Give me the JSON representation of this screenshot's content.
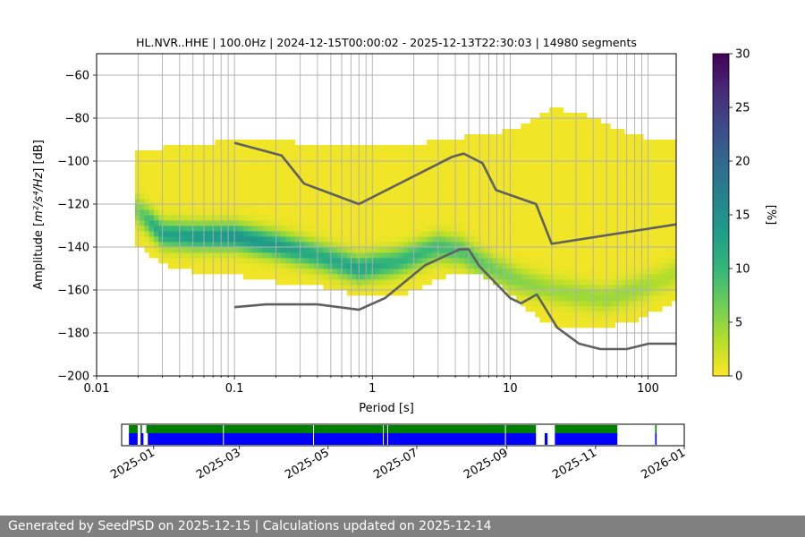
{
  "chart_data": {
    "type": "heatmap",
    "title": "HL.NVR..HHE | 100.0Hz | 2024-12-15T00:00:02 - 2025-12-13T22:30:03 | 14980 segments",
    "xlabel": "Period [s]",
    "ylabel_main": "Amplitude [",
    "ylabel_unit": "m²/s⁴/Hz",
    "ylabel_suffix": "] [dB]",
    "x_scale": "log",
    "xlim": [
      0.01,
      160
    ],
    "ylim": [
      -200,
      -50
    ],
    "x_ticks": [
      {
        "value": 0.01,
        "label": "0.01"
      },
      {
        "value": 0.1,
        "label": "0.1"
      },
      {
        "value": 1,
        "label": "1"
      },
      {
        "value": 10,
        "label": "10"
      },
      {
        "value": 100,
        "label": "100"
      }
    ],
    "y_ticks": [
      {
        "value": -60,
        "label": "−60"
      },
      {
        "value": -80,
        "label": "−80"
      },
      {
        "value": -100,
        "label": "−100"
      },
      {
        "value": -120,
        "label": "−120"
      },
      {
        "value": -140,
        "label": "−140"
      },
      {
        "value": -160,
        "label": "−160"
      },
      {
        "value": -180,
        "label": "−180"
      },
      {
        "value": -200,
        "label": "−200"
      }
    ],
    "grid": true,
    "colorbar": {
      "label": "[%]",
      "range": [
        0,
        30
      ],
      "ticks": [
        {
          "value": 0,
          "label": "0"
        },
        {
          "value": 5,
          "label": "5"
        },
        {
          "value": 10,
          "label": "10"
        },
        {
          "value": 15,
          "label": "15"
        },
        {
          "value": 20,
          "label": "20"
        },
        {
          "value": 25,
          "label": "25"
        },
        {
          "value": 30,
          "label": "30"
        }
      ],
      "colors": [
        "#fde725",
        "#b5de2b",
        "#6ece58",
        "#35b779",
        "#1f9e89",
        "#26828e",
        "#31688e",
        "#3e4989",
        "#482878",
        "#440154"
      ]
    },
    "psd_envelope": {
      "periods": [
        0.019,
        0.03,
        0.05,
        0.1,
        0.2,
        0.4,
        0.8,
        1.5,
        3,
        4.5,
        6,
        8,
        12,
        16,
        20,
        30,
        50,
        80,
        120,
        160
      ],
      "upper": [
        -97,
        -95,
        -93,
        -92,
        -92,
        -93,
        -94,
        -94,
        -92,
        -90,
        -88,
        -88,
        -85,
        -80,
        -77,
        -78,
        -84,
        -89,
        -92,
        -92
      ],
      "lower": [
        -137,
        -147,
        -150,
        -152,
        -155,
        -157,
        -161,
        -162,
        -154,
        -150,
        -152,
        -156,
        -165,
        -172,
        -175,
        -177,
        -176,
        -173,
        -168,
        -164
      ]
    },
    "psd_mode": {
      "periods": [
        0.019,
        0.025,
        0.03,
        0.05,
        0.1,
        0.2,
        0.4,
        0.8,
        1.5,
        3,
        4.5,
        6,
        8,
        12,
        20,
        30,
        50,
        80,
        120,
        160
      ],
      "values": [
        -122,
        -129,
        -134,
        -135,
        -135,
        -139,
        -144,
        -150,
        -147,
        -140,
        -142,
        -147,
        -151,
        -156,
        -160,
        -162,
        -164,
        -160,
        -156,
        -152
      ],
      "peak": [
        5,
        10,
        12,
        13,
        14,
        13,
        11,
        12,
        10,
        9,
        8,
        7,
        6,
        5,
        4,
        4,
        4,
        4,
        3,
        3
      ]
    },
    "nhnm": {
      "periods": [
        0.1,
        0.22,
        0.32,
        0.8,
        3.8,
        4.6,
        6.3,
        7.9,
        15.4,
        20,
        354.8
      ],
      "values": [
        -91.5,
        -97.4,
        -110.5,
        -120,
        -98,
        -96.5,
        -101,
        -113.5,
        -120,
        -138.5,
        -126
      ]
    },
    "nlnm": {
      "periods": [
        0.1,
        0.17,
        0.4,
        0.8,
        1.24,
        2.4,
        4.3,
        5,
        6,
        10,
        12,
        15.6,
        21.9,
        31.6,
        45,
        70,
        101,
        154,
        328
      ],
      "values": [
        -168,
        -166.7,
        -166.7,
        -169.2,
        -163.7,
        -148.6,
        -141.1,
        -141.1,
        -149,
        -163.8,
        -166.2,
        -162.1,
        -177.5,
        -185,
        -187.5,
        -187.5,
        -185,
        -185,
        -187.5
      ]
    }
  },
  "availability": {
    "tick_labels": [
      "2025-01",
      "2025-03",
      "2025-05",
      "2025-07",
      "2025-09",
      "2025-11",
      "2026-01"
    ],
    "tick_dates": [
      "2025-01-01",
      "2025-03-01",
      "2025-05-01",
      "2025-07-01",
      "2025-09-01",
      "2025-11-01",
      "2026-01-01"
    ],
    "range": [
      "2024-12-10",
      "2026-01-01"
    ],
    "data_color": "#0000ff",
    "gap_color": "#008000",
    "data_spans": [
      [
        "2024-12-15",
        "2024-12-21"
      ],
      [
        "2024-12-23",
        "2024-12-25"
      ],
      [
        "2024-12-28",
        "2025-09-21"
      ],
      [
        "2025-09-27",
        "2025-09-29"
      ],
      [
        "2025-10-04",
        "2025-11-16"
      ],
      [
        "2025-12-12",
        "2025-12-13"
      ]
    ],
    "gap_spans": [
      [
        "2024-12-15",
        "2024-12-21"
      ],
      [
        "2024-12-23",
        "2024-12-24"
      ],
      [
        "2024-12-27",
        "2025-09-21"
      ],
      [
        "2025-10-04",
        "2025-11-16"
      ],
      [
        "2025-12-12",
        "2025-12-13"
      ]
    ],
    "breaks": [
      "2025-02-18",
      "2025-04-21",
      "2025-06-08",
      "2025-06-11",
      "2025-08-31"
    ]
  },
  "footer": {
    "text": "Generated by SeedPSD on 2025-12-15 | Calculations updated on 2025-12-14"
  }
}
